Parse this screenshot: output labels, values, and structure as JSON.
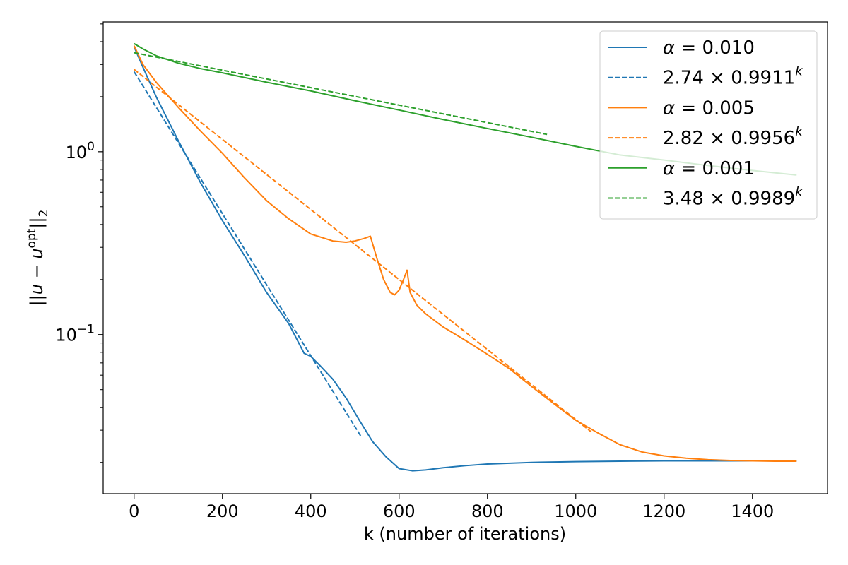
{
  "chart_data": {
    "type": "line",
    "xlabel": "k (number of iterations)",
    "ylabel_parts": {
      "main": "||u − u",
      "sup": "opt",
      "end": "||",
      "sub": "2"
    },
    "xlim": [
      -70,
      1570
    ],
    "ylim_log10": [
      -1.87,
      0.71
    ],
    "y_scale": "log",
    "x_ticks": [
      0,
      200,
      400,
      600,
      800,
      1000,
      1200,
      1400
    ],
    "y_ticks": [
      {
        "value": 1,
        "base": "10",
        "exp": "0"
      },
      {
        "value": 0.1,
        "base": "10",
        "exp": "−1"
      }
    ],
    "grid": false,
    "legend_position": "top-right",
    "series": [
      {
        "name": "α = 0.010",
        "legend_prefix": "α",
        "legend_value": " = 0.010",
        "color": "#1f77b4",
        "dash": "solid",
        "x": [
          0,
          20,
          50,
          100,
          150,
          200,
          250,
          300,
          350,
          385,
          400,
          420,
          450,
          480,
          510,
          540,
          570,
          600,
          630,
          660,
          700,
          750,
          800,
          900,
          1000,
          1100,
          1200,
          1300,
          1400,
          1500
        ],
        "y": [
          3.75,
          2.9,
          2.0,
          1.15,
          0.68,
          0.42,
          0.27,
          0.17,
          0.115,
          0.079,
          0.076,
          0.068,
          0.057,
          0.045,
          0.034,
          0.026,
          0.0215,
          0.0185,
          0.018,
          0.0182,
          0.0187,
          0.0192,
          0.0196,
          0.02,
          0.0202,
          0.0203,
          0.0204,
          0.0204,
          0.0204,
          0.0204
        ]
      },
      {
        "name": "2.74 × 0.9911^k",
        "legend_prefix": "",
        "legend_value": "2.74 × 0.9911",
        "legend_sup": "k",
        "color": "#1f77b4",
        "dash": "dashed",
        "fit": {
          "a": 2.74,
          "b": 0.9911,
          "x_start": 0,
          "x_end": 515
        }
      },
      {
        "name": "α = 0.005",
        "legend_prefix": "α",
        "legend_value": " = 0.005",
        "color": "#ff7f0e",
        "dash": "solid",
        "x": [
          0,
          20,
          50,
          100,
          150,
          200,
          250,
          300,
          350,
          400,
          450,
          480,
          500,
          520,
          535,
          550,
          565,
          580,
          590,
          600,
          610,
          618,
          625,
          640,
          660,
          700,
          750,
          800,
          850,
          900,
          950,
          1000,
          1050,
          1100,
          1150,
          1200,
          1250,
          1300,
          1350,
          1400,
          1450,
          1500
        ],
        "y": [
          3.8,
          3.0,
          2.4,
          1.75,
          1.3,
          0.98,
          0.72,
          0.54,
          0.43,
          0.355,
          0.325,
          0.32,
          0.325,
          0.335,
          0.345,
          0.26,
          0.2,
          0.17,
          0.165,
          0.175,
          0.2,
          0.225,
          0.17,
          0.145,
          0.13,
          0.11,
          0.093,
          0.078,
          0.065,
          0.052,
          0.042,
          0.034,
          0.029,
          0.025,
          0.0228,
          0.0217,
          0.0211,
          0.0207,
          0.0205,
          0.0204,
          0.0203,
          0.0203
        ]
      },
      {
        "name": "2.82 × 0.9956^k",
        "legend_prefix": "",
        "legend_value": "2.82 × 0.9956",
        "legend_sup": "k",
        "color": "#ff7f0e",
        "dash": "dashed",
        "fit": {
          "a": 2.82,
          "b": 0.9956,
          "x_start": 0,
          "x_end": 1035
        }
      },
      {
        "name": "α = 0.001",
        "legend_prefix": "α",
        "legend_value": " = 0.001",
        "color": "#2ca02c",
        "dash": "solid",
        "x": [
          0,
          20,
          50,
          100,
          150,
          200,
          300,
          400,
          500,
          600,
          700,
          800,
          900,
          1000,
          1100,
          1200,
          1300,
          1400,
          1500
        ],
        "y": [
          3.9,
          3.65,
          3.35,
          3.05,
          2.85,
          2.7,
          2.4,
          2.15,
          1.9,
          1.69,
          1.5,
          1.34,
          1.2,
          1.07,
          0.96,
          0.9,
          0.84,
          0.79,
          0.745
        ]
      },
      {
        "name": "3.48 × 0.9989^k",
        "legend_prefix": "",
        "legend_value": "3.48 × 0.9989",
        "legend_sup": "k",
        "color": "#2ca02c",
        "dash": "dashed",
        "fit": {
          "a": 3.48,
          "b": 0.9989,
          "x_start": 0,
          "x_end": 935
        }
      }
    ]
  }
}
